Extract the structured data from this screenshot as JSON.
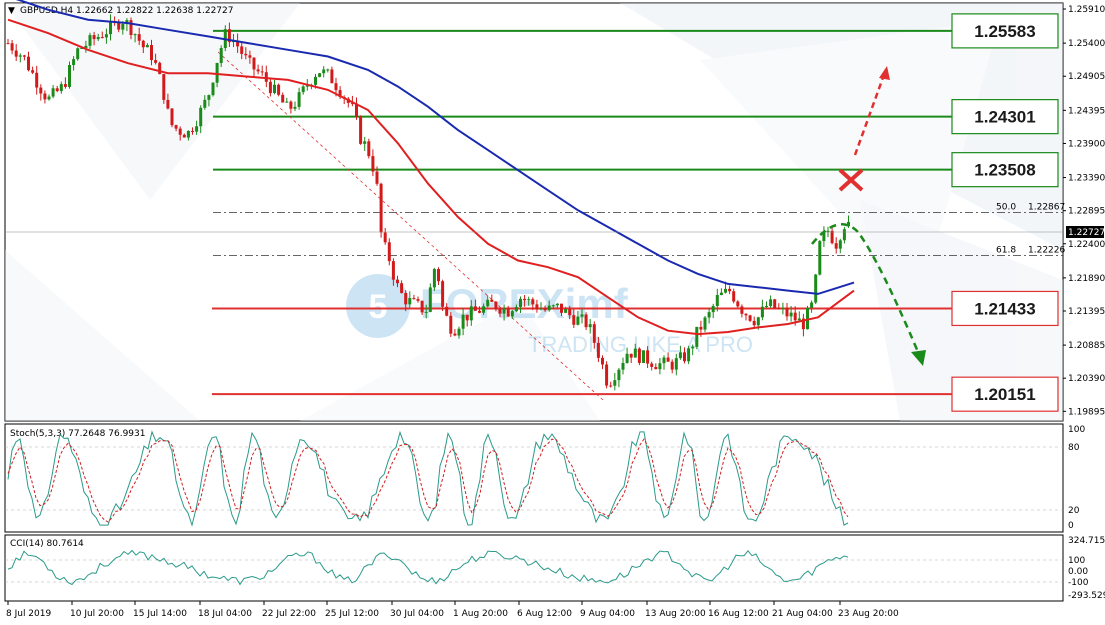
{
  "header": {
    "symbol_line": "GBPUSD,H4  1.22662 1.22822 1.22638 1.22727"
  },
  "watermark": {
    "brand": "FOREXimf",
    "tagline": "TRADING LIKE A PRO",
    "color": "#8fc4e8"
  },
  "price_axis": {
    "labels": [
      "1.25910",
      "1.25400",
      "1.24905",
      "1.24395",
      "1.23900",
      "1.23390",
      "1.22895",
      "1.22400",
      "1.21890",
      "1.21395",
      "1.20885",
      "1.20390",
      "1.19895"
    ],
    "current_price": "1.22727"
  },
  "levels": [
    {
      "value": "1.25583",
      "color": "#1a8a1a"
    },
    {
      "value": "1.24301",
      "color": "#1a8a1a"
    },
    {
      "value": "1.23508",
      "color": "#1a8a1a"
    },
    {
      "value": "1.21433",
      "color": "#e03030"
    },
    {
      "value": "1.20151",
      "color": "#e03030"
    }
  ],
  "fibonacci": [
    {
      "level": "50.0",
      "value": "1.22867"
    },
    {
      "level": "61.8",
      "value": "1.22226"
    }
  ],
  "time_axis": [
    "8 Jul 2019",
    "10 Jul 20:00",
    "15 Jul 14:00",
    "18 Jul 04:00",
    "22 Jul 22:00",
    "25 Jul 12:00",
    "30 Jul 04:00",
    "1 Aug 20:00",
    "6 Aug 12:00",
    "9 Aug 04:00",
    "13 Aug 20:00",
    "16 Aug 12:00",
    "21 Aug 04:00",
    "23 Aug 20:00"
  ],
  "stoch": {
    "title": "Stoch(5,3,3) 77.2648 76.9931",
    "axis": [
      "100",
      "80",
      "20",
      "0"
    ]
  },
  "cci": {
    "title": "CCI(14) 80.7614",
    "axis": [
      "324.7155",
      "100",
      "0.00",
      "-100",
      "-293.529"
    ]
  },
  "colors": {
    "bull": "#1a8a1a",
    "bear": "#d21a1a",
    "ma_fast": "#e02020",
    "ma_slow": "#1a2ab0",
    "stoch_main": "#2a9a8a",
    "stoch_signal": "#d02020",
    "cci": "#2a9a8a",
    "arrow_up": "#e03030",
    "arrow_down": "#1a8a1a"
  },
  "chart_data": {
    "type": "candlestick",
    "symbol": "GBPUSD",
    "timeframe": "H4",
    "ylim": [
      1.1975,
      1.26
    ],
    "last": {
      "open": 1.22662,
      "high": 1.22822,
      "low": 1.22638,
      "close": 1.22727
    },
    "horizontal_levels": [
      1.25583,
      1.24301,
      1.23508,
      1.21433,
      1.20151
    ],
    "fibonacci": {
      "50.0": 1.22867,
      "61.8": 1.22226
    },
    "close_path": [
      [
        0,
        1.254
      ],
      [
        15,
        1.252
      ],
      [
        30,
        1.248
      ],
      [
        40,
        1.2455
      ],
      [
        55,
        1.2475
      ],
      [
        70,
        1.253
      ],
      [
        85,
        1.2545
      ],
      [
        100,
        1.256
      ],
      [
        115,
        1.2575
      ],
      [
        125,
        1.256
      ],
      [
        135,
        1.2535
      ],
      [
        145,
        1.252
      ],
      [
        155,
        1.247
      ],
      [
        162,
        1.242
      ],
      [
        170,
        1.241
      ],
      [
        180,
        1.2405
      ],
      [
        190,
        1.243
      ],
      [
        200,
        1.246
      ],
      [
        210,
        1.252
      ],
      [
        218,
        1.2555
      ],
      [
        228,
        1.254
      ],
      [
        240,
        1.251
      ],
      [
        255,
        1.249
      ],
      [
        270,
        1.246
      ],
      [
        280,
        1.244
      ],
      [
        290,
        1.2455
      ],
      [
        300,
        1.248
      ],
      [
        310,
        1.25
      ],
      [
        322,
        1.249
      ],
      [
        332,
        1.247
      ],
      [
        345,
        1.244
      ],
      [
        352,
        1.24
      ],
      [
        360,
        1.238
      ],
      [
        368,
        1.234
      ],
      [
        374,
        1.224
      ],
      [
        380,
        1.2225
      ],
      [
        388,
        1.218
      ],
      [
        395,
        1.216
      ],
      [
        405,
        1.215
      ],
      [
        418,
        1.214
      ],
      [
        428,
        1.2215
      ],
      [
        435,
        1.214
      ],
      [
        445,
        1.211
      ],
      [
        455,
        1.213
      ],
      [
        470,
        1.214
      ],
      [
        485,
        1.215
      ],
      [
        500,
        1.214
      ],
      [
        512,
        1.216
      ],
      [
        525,
        1.215
      ],
      [
        538,
        1.214
      ],
      [
        550,
        1.2145
      ],
      [
        565,
        1.213
      ],
      [
        580,
        1.212
      ],
      [
        592,
        1.207
      ],
      [
        600,
        1.203
      ],
      [
        608,
        1.205
      ],
      [
        620,
        1.208
      ],
      [
        635,
        1.207
      ],
      [
        650,
        1.206
      ],
      [
        665,
        1.206
      ],
      [
        680,
        1.2075
      ],
      [
        690,
        1.211
      ],
      [
        700,
        1.213
      ],
      [
        710,
        1.216
      ],
      [
        722,
        1.217
      ],
      [
        735,
        1.214
      ],
      [
        748,
        1.2125
      ],
      [
        760,
        1.215
      ],
      [
        772,
        1.214
      ],
      [
        785,
        1.213
      ],
      [
        795,
        1.212
      ],
      [
        805,
        1.215
      ],
      [
        812,
        1.224
      ],
      [
        820,
        1.226
      ],
      [
        828,
        1.224
      ],
      [
        836,
        1.227
      ],
      [
        846,
        1.2273
      ]
    ],
    "ma_fast_path": [
      [
        0,
        1.2575
      ],
      [
        40,
        1.2555
      ],
      [
        80,
        1.253
      ],
      [
        120,
        1.251
      ],
      [
        160,
        1.2495
      ],
      [
        200,
        1.2495
      ],
      [
        240,
        1.249
      ],
      [
        280,
        1.2485
      ],
      [
        320,
        1.247
      ],
      [
        360,
        1.244
      ],
      [
        390,
        1.239
      ],
      [
        420,
        1.233
      ],
      [
        450,
        1.228
      ],
      [
        480,
        1.224
      ],
      [
        510,
        1.2215
      ],
      [
        540,
        1.2205
      ],
      [
        570,
        1.219
      ],
      [
        600,
        1.216
      ],
      [
        630,
        1.213
      ],
      [
        660,
        1.211
      ],
      [
        690,
        1.2105
      ],
      [
        720,
        1.2108
      ],
      [
        750,
        1.2115
      ],
      [
        780,
        1.212
      ],
      [
        810,
        1.213
      ],
      [
        846,
        1.217
      ]
    ],
    "ma_slow_path": [
      [
        0,
        1.261
      ],
      [
        40,
        1.259
      ],
      [
        80,
        1.2575
      ],
      [
        120,
        1.257
      ],
      [
        160,
        1.256
      ],
      [
        200,
        1.255
      ],
      [
        240,
        1.254
      ],
      [
        280,
        1.253
      ],
      [
        320,
        1.252
      ],
      [
        360,
        1.25
      ],
      [
        390,
        1.2475
      ],
      [
        420,
        1.2445
      ],
      [
        450,
        1.241
      ],
      [
        480,
        1.238
      ],
      [
        510,
        1.235
      ],
      [
        540,
        1.232
      ],
      [
        570,
        1.229
      ],
      [
        600,
        1.2265
      ],
      [
        630,
        1.224
      ],
      [
        660,
        1.2215
      ],
      [
        690,
        1.2195
      ],
      [
        720,
        1.218
      ],
      [
        750,
        1.2175
      ],
      [
        780,
        1.217
      ],
      [
        810,
        1.2165
      ],
      [
        846,
        1.2182
      ]
    ],
    "series": [
      {
        "name": "Stoch(5,3,3)",
        "last": [
          77.2648,
          76.9931
        ]
      },
      {
        "name": "CCI(14)",
        "last": [
          80.7614
        ]
      }
    ]
  }
}
